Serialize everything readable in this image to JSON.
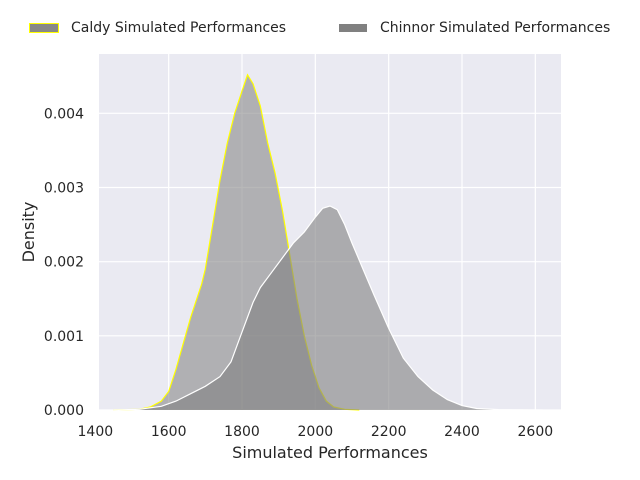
{
  "chart_data": {
    "type": "area",
    "xlabel": "Simulated Performances",
    "ylabel": "Density",
    "xlim": [
      1410,
      2670
    ],
    "ylim": [
      0,
      0.0048
    ],
    "x_ticks": [
      1400,
      1600,
      1800,
      2000,
      2200,
      2400,
      2600
    ],
    "y_ticks": [
      0.0,
      0.001,
      0.002,
      0.003,
      0.004
    ],
    "y_tick_labels": [
      "0.000",
      "0.001",
      "0.002",
      "0.003",
      "0.004"
    ],
    "grid": true,
    "background": "#eaeaf2",
    "legend_position": "top",
    "series": [
      {
        "name": "Caldy Simulated Performances",
        "fill": "#888888",
        "edge": "#ffff00",
        "points": [
          [
            1450,
            0
          ],
          [
            1520,
            1e-05
          ],
          [
            1550,
            4e-05
          ],
          [
            1580,
            0.00012
          ],
          [
            1600,
            0.00025
          ],
          [
            1620,
            0.00055
          ],
          [
            1640,
            0.0009
          ],
          [
            1660,
            0.00125
          ],
          [
            1690,
            0.0017
          ],
          [
            1700,
            0.0019
          ],
          [
            1720,
            0.0025
          ],
          [
            1740,
            0.0031
          ],
          [
            1760,
            0.0036
          ],
          [
            1780,
            0.004
          ],
          [
            1800,
            0.0043
          ],
          [
            1815,
            0.00452
          ],
          [
            1830,
            0.0044
          ],
          [
            1850,
            0.0041
          ],
          [
            1870,
            0.0036
          ],
          [
            1890,
            0.0032
          ],
          [
            1910,
            0.0027
          ],
          [
            1930,
            0.0021
          ],
          [
            1950,
            0.0015
          ],
          [
            1970,
            0.001
          ],
          [
            1990,
            0.0006
          ],
          [
            2010,
            0.0003
          ],
          [
            2030,
            0.00012
          ],
          [
            2050,
            4e-05
          ],
          [
            2080,
            1e-05
          ],
          [
            2120,
            0
          ]
        ]
      },
      {
        "name": "Chinnor Simulated Performances",
        "fill": "#808080",
        "edge": "#ffffff",
        "points": [
          [
            1450,
            0
          ],
          [
            1520,
            1e-05
          ],
          [
            1580,
            5e-05
          ],
          [
            1620,
            0.00012
          ],
          [
            1660,
            0.00022
          ],
          [
            1700,
            0.00032
          ],
          [
            1740,
            0.00045
          ],
          [
            1770,
            0.00065
          ],
          [
            1800,
            0.00105
          ],
          [
            1830,
            0.00145
          ],
          [
            1850,
            0.00165
          ],
          [
            1880,
            0.00185
          ],
          [
            1910,
            0.00205
          ],
          [
            1940,
            0.00225
          ],
          [
            1970,
            0.0024
          ],
          [
            2000,
            0.0026
          ],
          [
            2020,
            0.00272
          ],
          [
            2040,
            0.00275
          ],
          [
            2060,
            0.0027
          ],
          [
            2080,
            0.0025
          ],
          [
            2100,
            0.00225
          ],
          [
            2130,
            0.0019
          ],
          [
            2160,
            0.00155
          ],
          [
            2200,
            0.0011
          ],
          [
            2240,
            0.0007
          ],
          [
            2280,
            0.00045
          ],
          [
            2320,
            0.00027
          ],
          [
            2360,
            0.00014
          ],
          [
            2400,
            6e-05
          ],
          [
            2440,
            2e-05
          ],
          [
            2500,
            5e-06
          ],
          [
            2620,
            0
          ]
        ]
      }
    ]
  }
}
